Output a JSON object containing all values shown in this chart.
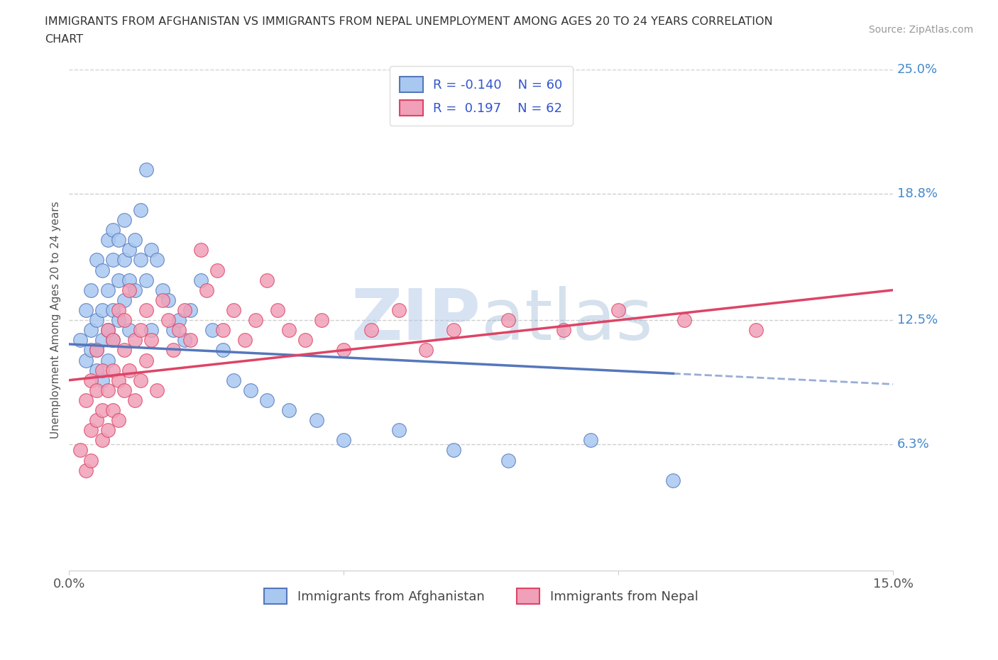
{
  "title_line1": "IMMIGRANTS FROM AFGHANISTAN VS IMMIGRANTS FROM NEPAL UNEMPLOYMENT AMONG AGES 20 TO 24 YEARS CORRELATION",
  "title_line2": "CHART",
  "source": "Source: ZipAtlas.com",
  "ylabel": "Unemployment Among Ages 20 to 24 years",
  "xlim": [
    0.0,
    0.15
  ],
  "ylim": [
    0.0,
    0.25
  ],
  "ytick_labels": [
    "25.0%",
    "18.8%",
    "12.5%",
    "6.3%"
  ],
  "ytick_vals": [
    0.25,
    0.188,
    0.125,
    0.063
  ],
  "afghanistan_R": -0.14,
  "afghanistan_N": 60,
  "nepal_R": 0.197,
  "nepal_N": 62,
  "afghanistan_color": "#a8c8f0",
  "nepal_color": "#f0a0b8",
  "afghanistan_line_color": "#5577bb",
  "nepal_line_color": "#dd4466",
  "background_color": "#ffffff",
  "grid_color": "#bbbbbb",
  "watermark_zip": "ZIP",
  "watermark_atlas": "atlas",
  "title_color": "#333333",
  "axis_label_color": "#4488cc",
  "legend_R_color": "#3355cc",
  "af_trend_start_y": 0.113,
  "af_trend_end_y": 0.093,
  "np_trend_start_y": 0.095,
  "np_trend_end_y": 0.14,
  "afghanistan_x": [
    0.002,
    0.003,
    0.003,
    0.004,
    0.004,
    0.004,
    0.005,
    0.005,
    0.005,
    0.005,
    0.006,
    0.006,
    0.006,
    0.006,
    0.007,
    0.007,
    0.007,
    0.007,
    0.008,
    0.008,
    0.008,
    0.008,
    0.009,
    0.009,
    0.009,
    0.01,
    0.01,
    0.01,
    0.011,
    0.011,
    0.011,
    0.012,
    0.012,
    0.013,
    0.013,
    0.014,
    0.014,
    0.015,
    0.015,
    0.016,
    0.017,
    0.018,
    0.019,
    0.02,
    0.021,
    0.022,
    0.024,
    0.026,
    0.028,
    0.03,
    0.033,
    0.036,
    0.04,
    0.045,
    0.05,
    0.06,
    0.07,
    0.08,
    0.095,
    0.11
  ],
  "afghanistan_y": [
    0.115,
    0.105,
    0.13,
    0.12,
    0.11,
    0.14,
    0.125,
    0.155,
    0.11,
    0.1,
    0.13,
    0.15,
    0.115,
    0.095,
    0.165,
    0.14,
    0.12,
    0.105,
    0.17,
    0.155,
    0.13,
    0.115,
    0.145,
    0.165,
    0.125,
    0.155,
    0.175,
    0.135,
    0.16,
    0.145,
    0.12,
    0.165,
    0.14,
    0.155,
    0.18,
    0.2,
    0.145,
    0.16,
    0.12,
    0.155,
    0.14,
    0.135,
    0.12,
    0.125,
    0.115,
    0.13,
    0.145,
    0.12,
    0.11,
    0.095,
    0.09,
    0.085,
    0.08,
    0.075,
    0.065,
    0.07,
    0.06,
    0.055,
    0.065,
    0.045
  ],
  "nepal_x": [
    0.002,
    0.003,
    0.003,
    0.004,
    0.004,
    0.004,
    0.005,
    0.005,
    0.005,
    0.006,
    0.006,
    0.006,
    0.007,
    0.007,
    0.007,
    0.008,
    0.008,
    0.008,
    0.009,
    0.009,
    0.009,
    0.01,
    0.01,
    0.01,
    0.011,
    0.011,
    0.012,
    0.012,
    0.013,
    0.013,
    0.014,
    0.014,
    0.015,
    0.016,
    0.017,
    0.018,
    0.019,
    0.02,
    0.021,
    0.022,
    0.024,
    0.025,
    0.027,
    0.028,
    0.03,
    0.032,
    0.034,
    0.036,
    0.038,
    0.04,
    0.043,
    0.046,
    0.05,
    0.055,
    0.06,
    0.065,
    0.07,
    0.08,
    0.09,
    0.1,
    0.112,
    0.125
  ],
  "nepal_y": [
    0.06,
    0.05,
    0.085,
    0.07,
    0.095,
    0.055,
    0.09,
    0.075,
    0.11,
    0.08,
    0.1,
    0.065,
    0.12,
    0.09,
    0.07,
    0.1,
    0.08,
    0.115,
    0.095,
    0.13,
    0.075,
    0.11,
    0.09,
    0.125,
    0.1,
    0.14,
    0.115,
    0.085,
    0.12,
    0.095,
    0.13,
    0.105,
    0.115,
    0.09,
    0.135,
    0.125,
    0.11,
    0.12,
    0.13,
    0.115,
    0.16,
    0.14,
    0.15,
    0.12,
    0.13,
    0.115,
    0.125,
    0.145,
    0.13,
    0.12,
    0.115,
    0.125,
    0.11,
    0.12,
    0.13,
    0.11,
    0.12,
    0.125,
    0.12,
    0.13,
    0.125,
    0.12
  ]
}
